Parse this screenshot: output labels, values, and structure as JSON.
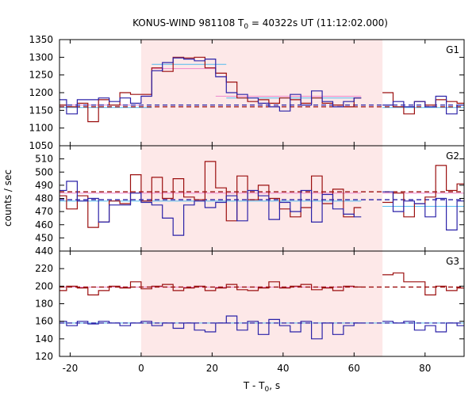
{
  "chart_data": {
    "type": "line",
    "title_parts": {
      "a": "KONUS-WIND 981108 T",
      "sub": "0",
      "b": " = 40322s UT (11:12:02.000)"
    },
    "xlabel_parts": {
      "a": "T - T",
      "sub": "0",
      "b": ", s"
    },
    "ylabel": "counts / sec",
    "xlim": [
      -23,
      91
    ],
    "x_ticks": [
      -20,
      0,
      20,
      40,
      60,
      80
    ],
    "shaded_interval": [
      0,
      68
    ],
    "colors": {
      "shade": "#fde8e8",
      "red": "#9b0f0f",
      "blue": "#2b22a8",
      "pink": "#ee88cc",
      "cyan": "#55bbee"
    },
    "panels": [
      {
        "name": "G1",
        "ylim": [
          1050,
          1350
        ],
        "y_ticks": [
          1050,
          1100,
          1150,
          1200,
          1250,
          1300,
          1350
        ],
        "blue_steps": [
          [
            -23,
            -21,
            1180
          ],
          [
            -21,
            -18,
            1140
          ],
          [
            -18,
            -15,
            1180
          ],
          [
            -15,
            -12,
            1180
          ],
          [
            -12,
            -9,
            1185
          ],
          [
            -9,
            -6,
            1175
          ],
          [
            -6,
            -3,
            1185
          ],
          [
            -3,
            0,
            1170
          ],
          [
            0,
            3,
            1190
          ],
          [
            3,
            6,
            1262
          ],
          [
            6,
            9,
            1285
          ],
          [
            9,
            12,
            1298
          ],
          [
            12,
            15,
            1295
          ],
          [
            15,
            18,
            1290
          ],
          [
            18,
            21,
            1295
          ],
          [
            21,
            24,
            1245
          ],
          [
            24,
            27,
            1200
          ],
          [
            27,
            30,
            1195
          ],
          [
            30,
            33,
            1185
          ],
          [
            33,
            36,
            1170
          ],
          [
            36,
            39,
            1160
          ],
          [
            39,
            42,
            1148
          ],
          [
            42,
            45,
            1195
          ],
          [
            45,
            48,
            1165
          ],
          [
            48,
            51,
            1205
          ],
          [
            51,
            54,
            1175
          ],
          [
            54,
            57,
            1160
          ],
          [
            57,
            60,
            1175
          ],
          [
            60,
            62,
            1185
          ]
        ],
        "red_steps": [
          [
            -23,
            -21,
            1165
          ],
          [
            -21,
            -18,
            1160
          ],
          [
            -18,
            -15,
            1170
          ],
          [
            -15,
            -12,
            1118
          ],
          [
            -12,
            -9,
            1180
          ],
          [
            -9,
            -6,
            1165
          ],
          [
            -6,
            -3,
            1200
          ],
          [
            -3,
            0,
            1195
          ],
          [
            0,
            3,
            1195
          ],
          [
            3,
            6,
            1270
          ],
          [
            6,
            9,
            1260
          ],
          [
            9,
            12,
            1300
          ],
          [
            12,
            15,
            1298
          ],
          [
            15,
            18,
            1300
          ],
          [
            18,
            21,
            1270
          ],
          [
            21,
            24,
            1255
          ],
          [
            24,
            27,
            1230
          ],
          [
            27,
            30,
            1185
          ],
          [
            30,
            33,
            1175
          ],
          [
            33,
            36,
            1180
          ],
          [
            36,
            39,
            1170
          ],
          [
            39,
            42,
            1185
          ],
          [
            42,
            45,
            1180
          ],
          [
            45,
            48,
            1170
          ],
          [
            48,
            51,
            1185
          ],
          [
            51,
            54,
            1170
          ],
          [
            54,
            57,
            1165
          ],
          [
            57,
            60,
            1160
          ],
          [
            60,
            62,
            1185
          ]
        ],
        "blue_after": [
          [
            68,
            71,
            1165
          ],
          [
            71,
            74,
            1175
          ],
          [
            74,
            77,
            1160
          ],
          [
            77,
            80,
            1175
          ],
          [
            80,
            83,
            1160
          ],
          [
            83,
            86,
            1190
          ],
          [
            86,
            89,
            1140
          ],
          [
            89,
            91,
            1165
          ]
        ],
        "red_after": [
          [
            68,
            71,
            1200
          ],
          [
            71,
            74,
            1160
          ],
          [
            74,
            77,
            1140
          ],
          [
            77,
            80,
            1175
          ],
          [
            80,
            83,
            1165
          ],
          [
            83,
            86,
            1180
          ],
          [
            86,
            89,
            1175
          ],
          [
            89,
            91,
            1170
          ]
        ],
        "red_mean": 1160,
        "blue_mean": 1165,
        "pink_segments": [
          [
            -23,
            0,
            1165
          ],
          [
            0,
            3,
            1190
          ],
          [
            3,
            21,
            1268
          ],
          [
            21,
            24,
            1190
          ],
          [
            24,
            62,
            1190
          ]
        ],
        "cyan_segments": [
          [
            -23,
            0,
            1158
          ],
          [
            0,
            3,
            1158
          ],
          [
            3,
            24,
            1280
          ],
          [
            24,
            62,
            1185
          ],
          [
            68,
            91,
            1158
          ]
        ]
      },
      {
        "name": "G2",
        "ylim": [
          440,
          520
        ],
        "y_ticks": [
          440,
          450,
          460,
          470,
          480,
          490,
          500,
          510
        ],
        "blue_steps": [
          [
            -23,
            -21,
            486
          ],
          [
            -21,
            -18,
            493
          ],
          [
            -18,
            -15,
            478
          ],
          [
            -15,
            -12,
            480
          ],
          [
            -12,
            -9,
            462
          ],
          [
            -9,
            -6,
            475
          ],
          [
            -6,
            -3,
            475
          ],
          [
            -3,
            0,
            484
          ],
          [
            0,
            3,
            477
          ],
          [
            3,
            6,
            475
          ],
          [
            6,
            9,
            465
          ],
          [
            9,
            12,
            452
          ],
          [
            12,
            15,
            475
          ],
          [
            15,
            18,
            478
          ],
          [
            18,
            21,
            473
          ],
          [
            21,
            24,
            477
          ],
          [
            24,
            27,
            482
          ],
          [
            27,
            30,
            463
          ],
          [
            30,
            33,
            486
          ],
          [
            33,
            36,
            482
          ],
          [
            36,
            39,
            464
          ],
          [
            39,
            42,
            477
          ],
          [
            42,
            45,
            470
          ],
          [
            45,
            48,
            486
          ],
          [
            48,
            51,
            462
          ],
          [
            51,
            54,
            483
          ],
          [
            54,
            57,
            472
          ],
          [
            57,
            60,
            468
          ],
          [
            60,
            62,
            466
          ]
        ],
        "red_steps": [
          [
            -23,
            -21,
            482
          ],
          [
            -21,
            -18,
            472
          ],
          [
            -18,
            -15,
            482
          ],
          [
            -15,
            -12,
            458
          ],
          [
            -12,
            -9,
            462
          ],
          [
            -9,
            -6,
            478
          ],
          [
            -6,
            -3,
            476
          ],
          [
            -3,
            0,
            498
          ],
          [
            0,
            3,
            478
          ],
          [
            3,
            6,
            496
          ],
          [
            6,
            9,
            480
          ],
          [
            9,
            12,
            495
          ],
          [
            12,
            15,
            481
          ],
          [
            15,
            18,
            479
          ],
          [
            18,
            21,
            508
          ],
          [
            21,
            24,
            488
          ],
          [
            24,
            27,
            463
          ],
          [
            27,
            30,
            497
          ],
          [
            30,
            33,
            479
          ],
          [
            33,
            36,
            490
          ],
          [
            36,
            39,
            480
          ],
          [
            39,
            42,
            472
          ],
          [
            42,
            45,
            466
          ],
          [
            45,
            48,
            473
          ],
          [
            48,
            51,
            497
          ],
          [
            51,
            54,
            476
          ],
          [
            54,
            57,
            487
          ],
          [
            57,
            60,
            466
          ],
          [
            60,
            62,
            473
          ]
        ],
        "blue_after": [
          [
            68,
            71,
            485
          ],
          [
            71,
            74,
            470
          ],
          [
            74,
            77,
            478
          ],
          [
            77,
            80,
            476
          ],
          [
            80,
            83,
            466
          ],
          [
            83,
            86,
            480
          ],
          [
            86,
            89,
            456
          ],
          [
            89,
            91,
            478
          ]
        ],
        "red_after": [
          [
            68,
            71,
            477
          ],
          [
            71,
            74,
            484
          ],
          [
            74,
            77,
            466
          ],
          [
            77,
            80,
            476
          ],
          [
            80,
            83,
            481
          ],
          [
            83,
            86,
            505
          ],
          [
            86,
            89,
            486
          ],
          [
            89,
            91,
            491
          ]
        ],
        "red_mean": 485,
        "blue_mean": 479,
        "pink_segments": [
          [
            -23,
            62,
            484
          ],
          [
            68,
            91,
            484
          ]
        ],
        "cyan_segments": [
          [
            -23,
            62,
            478
          ],
          [
            68,
            91,
            474
          ]
        ]
      },
      {
        "name": "G3",
        "ylim": [
          120,
          240
        ],
        "y_ticks": [
          120,
          140,
          160,
          180,
          200,
          220
        ],
        "blue_steps": [
          [
            -23,
            -21,
            160
          ],
          [
            -21,
            -18,
            155
          ],
          [
            -18,
            -15,
            160
          ],
          [
            -15,
            -12,
            157
          ],
          [
            -12,
            -9,
            160
          ],
          [
            -9,
            -6,
            158
          ],
          [
            -6,
            -3,
            155
          ],
          [
            -3,
            0,
            158
          ],
          [
            0,
            3,
            160
          ],
          [
            3,
            6,
            155
          ],
          [
            6,
            9,
            158
          ],
          [
            9,
            12,
            152
          ],
          [
            12,
            15,
            158
          ],
          [
            15,
            18,
            150
          ],
          [
            18,
            21,
            148
          ],
          [
            21,
            24,
            158
          ],
          [
            24,
            27,
            166
          ],
          [
            27,
            30,
            150
          ],
          [
            30,
            33,
            160
          ],
          [
            33,
            36,
            145
          ],
          [
            36,
            39,
            162
          ],
          [
            39,
            42,
            155
          ],
          [
            42,
            45,
            148
          ],
          [
            45,
            48,
            160
          ],
          [
            48,
            51,
            140
          ],
          [
            51,
            54,
            158
          ],
          [
            54,
            57,
            145
          ],
          [
            57,
            60,
            155
          ],
          [
            60,
            62,
            158
          ]
        ],
        "red_steps": [
          [
            -23,
            -21,
            195
          ],
          [
            -21,
            -18,
            200
          ],
          [
            -18,
            -15,
            198
          ],
          [
            -15,
            -12,
            190
          ],
          [
            -12,
            -9,
            195
          ],
          [
            -9,
            -6,
            200
          ],
          [
            -6,
            -3,
            198
          ],
          [
            -3,
            0,
            205
          ],
          [
            0,
            3,
            197
          ],
          [
            3,
            6,
            200
          ],
          [
            6,
            9,
            202
          ],
          [
            9,
            12,
            195
          ],
          [
            12,
            15,
            198
          ],
          [
            15,
            18,
            200
          ],
          [
            18,
            21,
            195
          ],
          [
            21,
            24,
            198
          ],
          [
            24,
            27,
            202
          ],
          [
            27,
            30,
            196
          ],
          [
            30,
            33,
            195
          ],
          [
            33,
            36,
            198
          ],
          [
            36,
            39,
            205
          ],
          [
            39,
            42,
            198
          ],
          [
            42,
            45,
            200
          ],
          [
            45,
            48,
            202
          ],
          [
            48,
            51,
            196
          ],
          [
            51,
            54,
            198
          ],
          [
            54,
            57,
            195
          ],
          [
            57,
            60,
            200
          ],
          [
            60,
            62,
            199
          ]
        ],
        "blue_after": [
          [
            68,
            71,
            160
          ],
          [
            71,
            74,
            158
          ],
          [
            74,
            77,
            160
          ],
          [
            77,
            80,
            150
          ],
          [
            80,
            83,
            155
          ],
          [
            83,
            86,
            148
          ],
          [
            86,
            89,
            158
          ],
          [
            89,
            91,
            155
          ]
        ],
        "red_after": [
          [
            68,
            71,
            213
          ],
          [
            71,
            74,
            215
          ],
          [
            74,
            77,
            205
          ],
          [
            77,
            80,
            205
          ],
          [
            80,
            83,
            190
          ],
          [
            83,
            86,
            200
          ],
          [
            86,
            89,
            195
          ],
          [
            89,
            91,
            198
          ]
        ],
        "red_mean": 199,
        "blue_mean": 158,
        "pink_segments": [
          [
            -23,
            62,
            199
          ]
        ],
        "cyan_segments": [
          [
            -23,
            91,
            158
          ]
        ]
      }
    ]
  }
}
